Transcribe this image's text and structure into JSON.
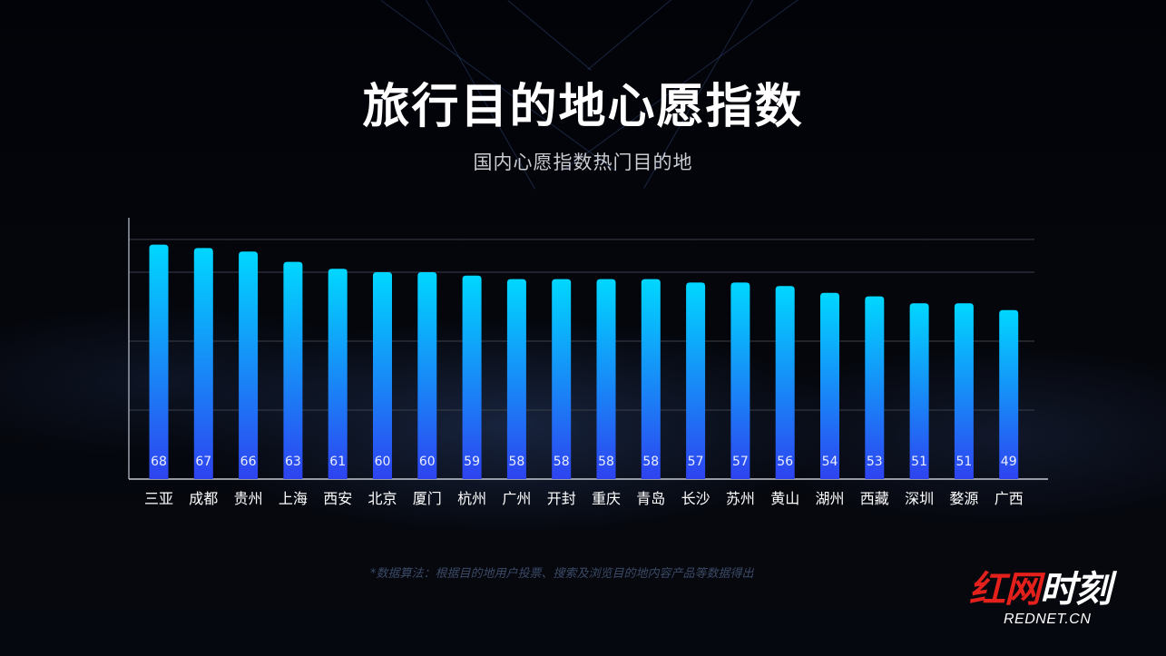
{
  "title": "旅行目的地心愿指数",
  "subtitle": "国内心愿指数热门目的地",
  "note": "*数据算法：根据目的地用户投票、搜索及浏览目的地内容产品等数据得出",
  "logo": {
    "red_part": "红网",
    "white_part": "时刻",
    "domain": "REDNET.CN"
  },
  "chart_data": {
    "type": "bar",
    "categories": [
      "三亚",
      "成都",
      "贵州",
      "上海",
      "西安",
      "北京",
      "厦门",
      "杭州",
      "广州",
      "开封",
      "重庆",
      "青岛",
      "长沙",
      "苏州",
      "黄山",
      "湖州",
      "西藏",
      "深圳",
      "婺源",
      "广西"
    ],
    "values": [
      68,
      67,
      66,
      63,
      61,
      60,
      60,
      59,
      58,
      58,
      58,
      58,
      57,
      57,
      56,
      54,
      53,
      51,
      51,
      49
    ],
    "bar_color_top": "#00d7ff",
    "bar_color_bottom": "#2e43f0",
    "grid": true,
    "data_labels": "inside-bottom"
  }
}
